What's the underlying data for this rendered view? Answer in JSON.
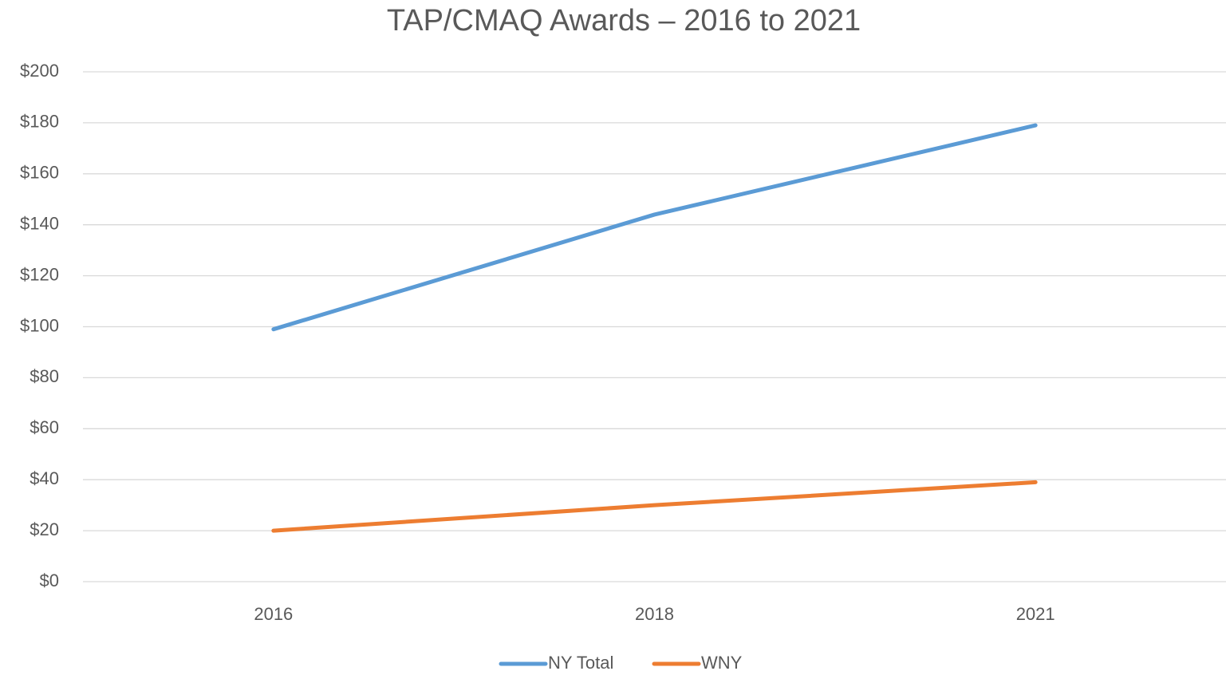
{
  "chart_data": {
    "type": "line",
    "title": "TAP/CMAQ Awards – 2016 to 2021",
    "categories": [
      "2016",
      "2018",
      "2021"
    ],
    "series": [
      {
        "name": "NY Total",
        "color": "#5b9bd5",
        "values": [
          99,
          144,
          179
        ]
      },
      {
        "name": "WNY",
        "color": "#ed7d31",
        "values": [
          20,
          30,
          39
        ]
      }
    ],
    "ylim": [
      0,
      200
    ],
    "yticks": [
      {
        "value": 0,
        "label": "$0"
      },
      {
        "value": 20,
        "label": "$20"
      },
      {
        "value": 40,
        "label": "$40"
      },
      {
        "value": 60,
        "label": "$60"
      },
      {
        "value": 80,
        "label": "$80"
      },
      {
        "value": 100,
        "label": "$100"
      },
      {
        "value": 120,
        "label": "$120"
      },
      {
        "value": 140,
        "label": "$140"
      },
      {
        "value": 160,
        "label": "$160"
      },
      {
        "value": 180,
        "label": "$180"
      },
      {
        "value": 200,
        "label": "$200"
      }
    ],
    "grid": true,
    "legend": "bottom"
  }
}
